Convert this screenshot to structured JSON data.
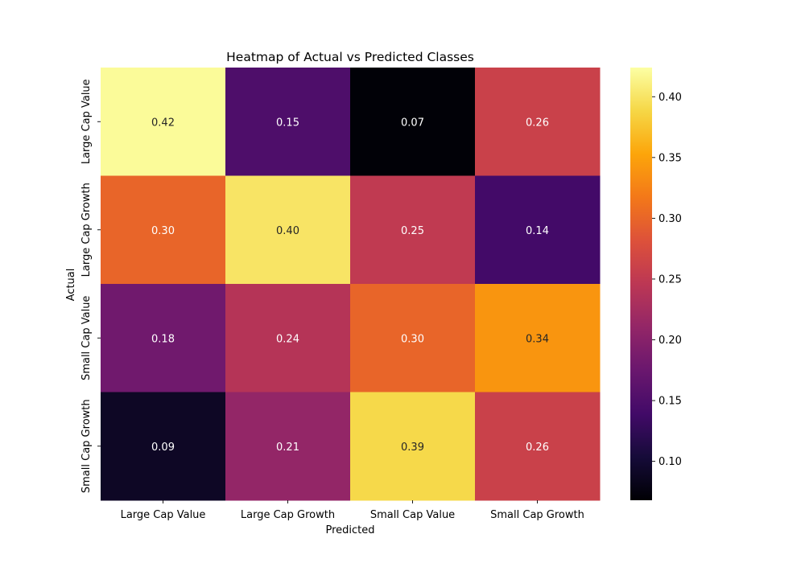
{
  "chart_data": {
    "type": "heatmap",
    "title": "Heatmap of Actual vs Predicted Classes",
    "xlabel": "Predicted",
    "ylabel": "Actual",
    "x_categories": [
      "Large Cap Value",
      "Large Cap Growth",
      "Small Cap Value",
      "Small Cap Growth"
    ],
    "y_categories": [
      "Large Cap Value",
      "Large Cap Growth",
      "Small Cap Value",
      "Small Cap Growth"
    ],
    "values": [
      [
        0.42,
        0.15,
        0.07,
        0.26
      ],
      [
        0.3,
        0.4,
        0.25,
        0.14
      ],
      [
        0.18,
        0.24,
        0.3,
        0.34
      ],
      [
        0.09,
        0.21,
        0.39,
        0.26
      ]
    ],
    "value_format": "0.00",
    "colormap": "inferno",
    "vmin": 0.068,
    "vmax": 0.424,
    "colorbar_ticks": [
      0.1,
      0.15,
      0.2,
      0.25,
      0.3,
      0.35,
      0.4
    ],
    "colorbar_tick_labels": [
      "0.10",
      "0.15",
      "0.20",
      "0.25",
      "0.30",
      "0.35",
      "0.40"
    ],
    "grid": false,
    "colorbar_position": "right"
  }
}
